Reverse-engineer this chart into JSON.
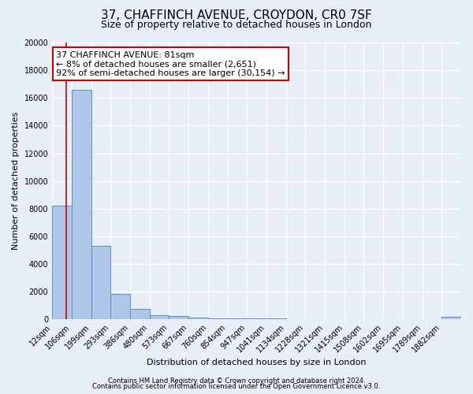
{
  "title_line1": "37, CHAFFINCH AVENUE, CROYDON, CR0 7SF",
  "title_line2": "Size of property relative to detached houses in London",
  "xlabel": "Distribution of detached houses by size in London",
  "ylabel": "Number of detached properties",
  "bar_labels": [
    "12sqm",
    "106sqm",
    "199sqm",
    "293sqm",
    "386sqm",
    "480sqm",
    "573sqm",
    "667sqm",
    "760sqm",
    "854sqm",
    "947sqm",
    "1041sqm",
    "1134sqm",
    "1228sqm",
    "1321sqm",
    "1415sqm",
    "1508sqm",
    "1602sqm",
    "1695sqm",
    "1789sqm",
    "1882sqm"
  ],
  "bar_values": [
    8200,
    16600,
    5300,
    1850,
    780,
    300,
    260,
    150,
    100,
    80,
    60,
    50,
    40,
    30,
    25,
    20,
    18,
    15,
    12,
    10,
    175
  ],
  "bar_color": "#aec6e8",
  "bar_edge_color": "#5b8ec4",
  "background_color": "#e8eef7",
  "grid_color": "#ffffff",
  "ylim": [
    0,
    20000
  ],
  "yticks": [
    0,
    2000,
    4000,
    6000,
    8000,
    10000,
    12000,
    14000,
    16000,
    18000,
    20000
  ],
  "annotation_title": "37 CHAFFINCH AVENUE: 81sqm",
  "annotation_line2": "← 8% of detached houses are smaller (2,651)",
  "annotation_line3": "92% of semi-detached houses are larger (30,154) →",
  "annotation_box_color": "#ffffff",
  "annotation_box_edge": "#cc0000",
  "footer_line1": "Contains HM Land Registry data © Crown copyright and database right 2024.",
  "footer_line2": "Contains public sector information licensed under the Open Government Licence v3.0.",
  "title_fontsize": 11,
  "subtitle_fontsize": 9,
  "axis_label_fontsize": 8,
  "tick_fontsize": 7,
  "annotation_fontsize": 8,
  "footer_fontsize": 6
}
